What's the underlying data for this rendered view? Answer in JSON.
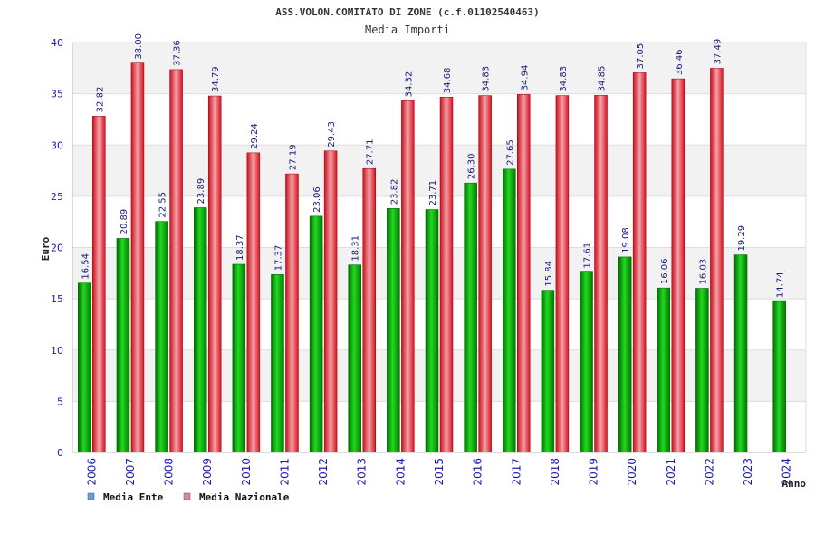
{
  "chart_data": {
    "type": "bar",
    "title": "ASS.VOLON.COMITATO DI ZONE (c.f.01102540463)",
    "subtitle": "Media Importi",
    "xlabel": "Anno",
    "ylabel": "Euro",
    "ylim": [
      0,
      40
    ],
    "yticks": [
      0,
      5,
      10,
      15,
      20,
      25,
      30,
      35,
      40
    ],
    "grid": true,
    "legend_position": "bottom-left",
    "categories": [
      "2006",
      "2007",
      "2008",
      "2009",
      "2010",
      "2011",
      "2012",
      "2013",
      "2014",
      "2015",
      "2016",
      "2017",
      "2018",
      "2019",
      "2020",
      "2021",
      "2022",
      "2023",
      "2024"
    ],
    "series": [
      {
        "name": "Media Ente",
        "color": "#00a000",
        "legend_color": "#5aa0e6",
        "values": [
          16.54,
          20.89,
          22.55,
          23.89,
          18.37,
          17.37,
          23.06,
          18.31,
          23.82,
          23.71,
          26.3,
          27.65,
          15.84,
          17.61,
          19.08,
          16.06,
          16.03,
          19.29,
          14.74
        ],
        "labels": [
          "16.54",
          "20.89",
          "22.55",
          "23.89",
          "18.37",
          "17.37",
          "23.06",
          "18.31",
          "23.82",
          "23.71",
          "26.30",
          "27.65",
          "15.84",
          "17.61",
          "19.08",
          "16.06",
          "16.03",
          "19.29",
          "14.74"
        ]
      },
      {
        "name": "Media Nazionale",
        "color": "#e8202a",
        "legend_color": "#e080b0",
        "values": [
          32.82,
          38.0,
          37.36,
          34.79,
          29.24,
          27.19,
          29.43,
          27.71,
          34.32,
          34.68,
          34.83,
          34.94,
          34.83,
          34.85,
          37.05,
          36.46,
          37.49,
          null,
          null
        ],
        "labels": [
          "32.82",
          "38.00",
          "37.36",
          "34.79",
          "29.24",
          "27.19",
          "29.43",
          "27.71",
          "34.32",
          "34.68",
          "34.83",
          "34.94",
          "34.83",
          "34.85",
          "37.05",
          "36.46",
          "37.49",
          null,
          null
        ]
      }
    ]
  }
}
